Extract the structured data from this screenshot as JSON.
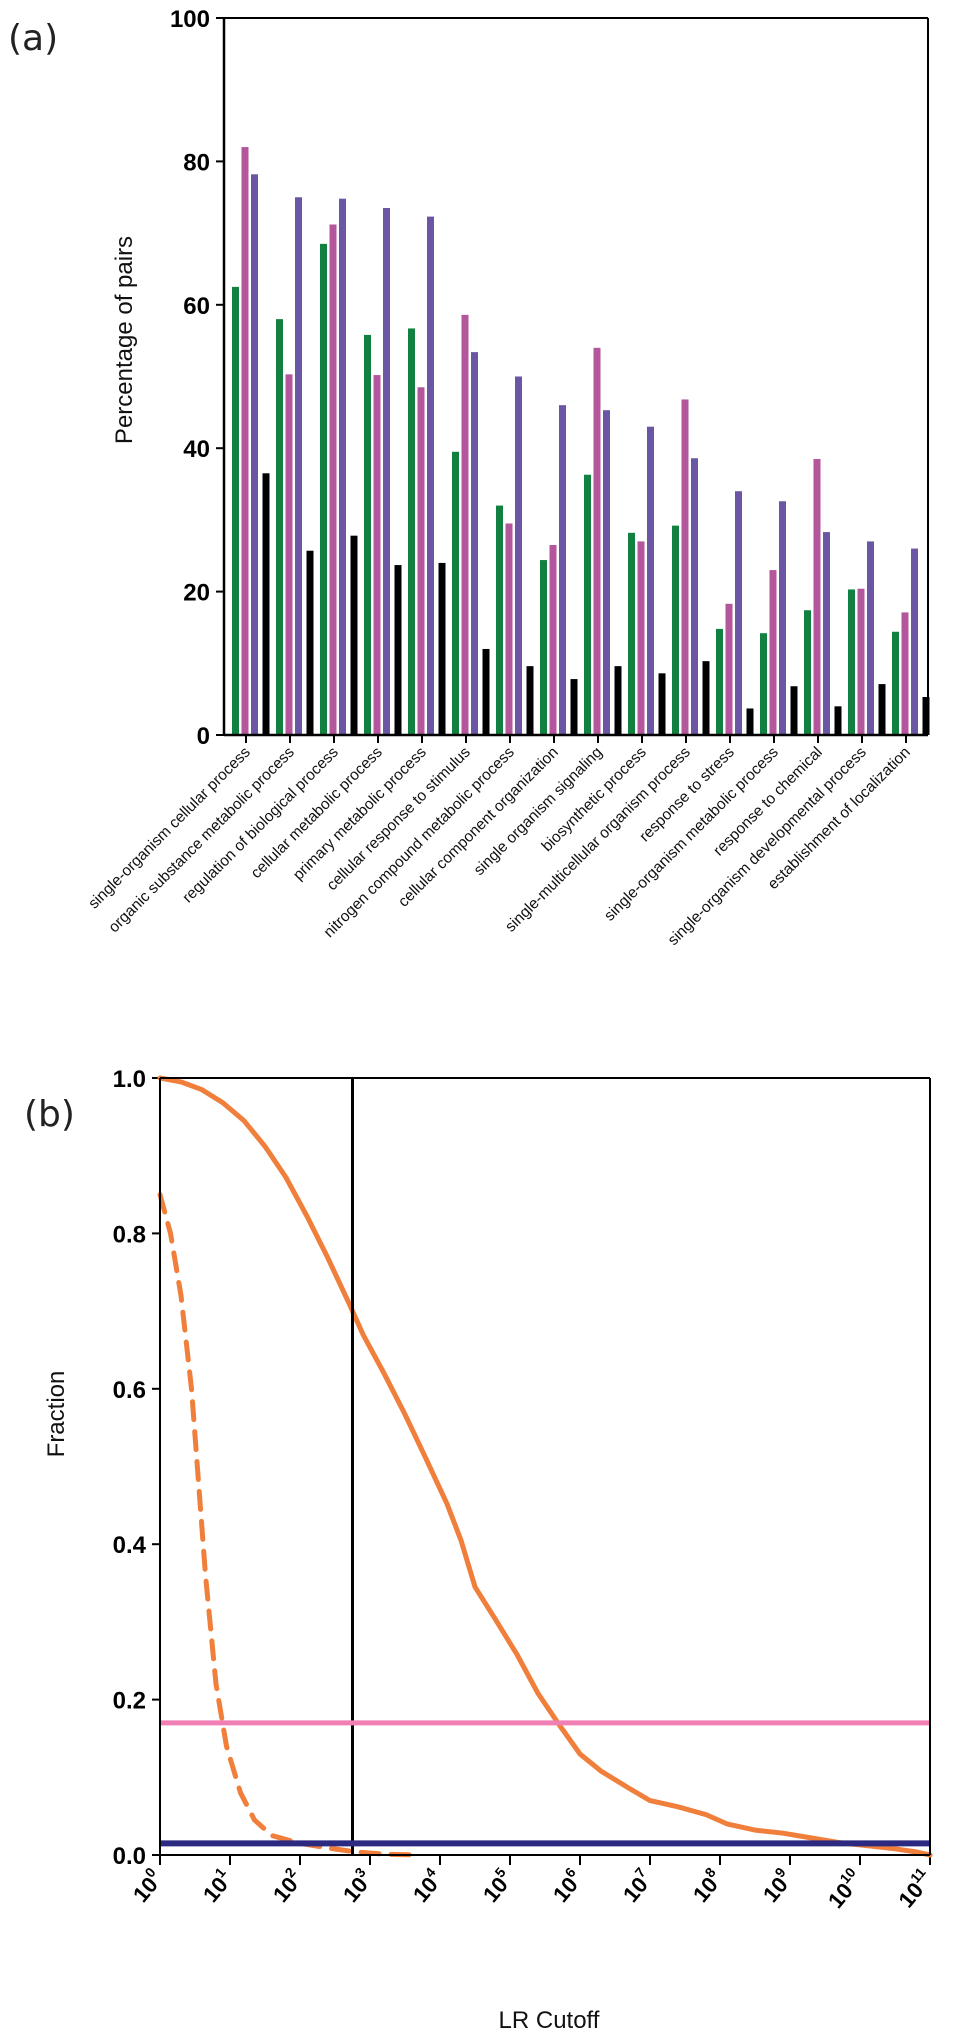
{
  "chart_data": [
    {
      "panel_label": "(a)",
      "type": "bar",
      "title": "",
      "xlabel": "",
      "ylabel": "Percentage of pairs",
      "ylim": [
        0,
        100
      ],
      "yticks": [
        0,
        20,
        40,
        60,
        80,
        100
      ],
      "grid": false,
      "legend": "none",
      "categories": [
        "single-organism cellular process",
        "organic substance metabolic process",
        "regulation of biological process",
        "cellular metabolic process",
        "primary metabolic process",
        "cellular response to stimulus",
        "nitrogen compound metabolic process",
        "cellular component organization",
        "single organism signaling",
        "biosynthetic process",
        "single-multicellular organism process",
        "response to stress",
        "single-organism metabolic process",
        "response to chemical",
        "single-organism developmental process",
        "establishment of localization"
      ],
      "series": [
        {
          "name": "series-green",
          "color": "#128040",
          "values": [
            62.5,
            58,
            68.5,
            55.8,
            56.7,
            39.5,
            32,
            24.4,
            36.3,
            28.2,
            29.2,
            14.8,
            14.2,
            17.4,
            20.3,
            14.4
          ]
        },
        {
          "name": "series-magenta",
          "color": "#b4569c",
          "values": [
            82,
            50.3,
            71.2,
            50.2,
            48.5,
            58.6,
            29.5,
            26.5,
            54,
            27,
            46.8,
            18.3,
            23,
            38.5,
            20.4,
            17.1
          ]
        },
        {
          "name": "series-purple",
          "color": "#6a56a2",
          "values": [
            78.2,
            75,
            74.8,
            73.5,
            72.3,
            53.4,
            50,
            46,
            45.3,
            43,
            38.6,
            34,
            32.6,
            28.3,
            27,
            26
          ]
        },
        {
          "name": "series-black",
          "color": "#000000",
          "values": [
            36.5,
            25.7,
            27.8,
            23.7,
            24,
            12,
            9.6,
            7.8,
            9.6,
            8.6,
            10.3,
            3.7,
            6.8,
            4,
            7.1,
            5.3
          ]
        }
      ]
    },
    {
      "panel_label": "(b)",
      "type": "line",
      "title": "",
      "xlabel": "LR Cutoff",
      "ylabel": "Fraction",
      "xscale": "log",
      "xlim_log10": [
        0,
        11
      ],
      "ylim": [
        0,
        1
      ],
      "yticks": [
        "0.0",
        "0.2",
        "0.4",
        "0.6",
        "0.8",
        "1.0"
      ],
      "xtick_exponents": [
        0,
        1,
        2,
        3,
        4,
        5,
        6,
        7,
        8,
        9,
        10,
        11
      ],
      "xtick_base": "10",
      "grid": false,
      "legend": "none",
      "series": [
        {
          "name": "solid-orange-curve",
          "color": "#f07f3c",
          "style": "solid",
          "points_log10x": [
            [
              0,
              1.0
            ],
            [
              0.3,
              0.995
            ],
            [
              0.6,
              0.985
            ],
            [
              0.9,
              0.968
            ],
            [
              1.2,
              0.945
            ],
            [
              1.5,
              0.912
            ],
            [
              1.8,
              0.872
            ],
            [
              2.1,
              0.822
            ],
            [
              2.4,
              0.768
            ],
            [
              2.7,
              0.71
            ],
            [
              2.9,
              0.67
            ],
            [
              3.2,
              0.62
            ],
            [
              3.5,
              0.567
            ],
            [
              3.8,
              0.51
            ],
            [
              4.1,
              0.452
            ],
            [
              4.3,
              0.405
            ],
            [
              4.5,
              0.345
            ],
            [
              4.8,
              0.302
            ],
            [
              5.1,
              0.258
            ],
            [
              5.4,
              0.208
            ],
            [
              5.7,
              0.168
            ],
            [
              6.0,
              0.13
            ],
            [
              6.3,
              0.108
            ],
            [
              6.7,
              0.086
            ],
            [
              7.0,
              0.07
            ],
            [
              7.4,
              0.062
            ],
            [
              7.8,
              0.052
            ],
            [
              8.1,
              0.04
            ],
            [
              8.5,
              0.032
            ],
            [
              8.9,
              0.028
            ],
            [
              9.3,
              0.022
            ],
            [
              9.7,
              0.016
            ],
            [
              10.1,
              0.012
            ],
            [
              10.5,
              0.008
            ],
            [
              10.8,
              0.004
            ],
            [
              11.0,
              0.0
            ]
          ]
        },
        {
          "name": "dashed-orange-curve",
          "color": "#f07f3c",
          "style": "dashed",
          "points_log10x": [
            [
              0,
              0.85
            ],
            [
              0.15,
              0.8
            ],
            [
              0.3,
              0.72
            ],
            [
              0.45,
              0.6
            ],
            [
              0.55,
              0.48
            ],
            [
              0.65,
              0.36
            ],
            [
              0.8,
              0.22
            ],
            [
              0.95,
              0.14
            ],
            [
              1.15,
              0.08
            ],
            [
              1.35,
              0.045
            ],
            [
              1.6,
              0.025
            ],
            [
              2.0,
              0.015
            ],
            [
              2.4,
              0.009
            ],
            [
              2.8,
              0.004
            ],
            [
              3.2,
              0.001
            ],
            [
              3.7,
              0.0
            ]
          ]
        }
      ],
      "reference_lines": [
        {
          "name": "vertical-cutoff-line",
          "orientation": "vertical",
          "x_log10": 2.75,
          "color": "#000000"
        },
        {
          "name": "pink-horizontal-line",
          "orientation": "horizontal",
          "y": 0.17,
          "color": "#f07fb4"
        },
        {
          "name": "navy-horizontal-line",
          "orientation": "horizontal",
          "y": 0.015,
          "color": "#2b2a80"
        }
      ]
    }
  ]
}
